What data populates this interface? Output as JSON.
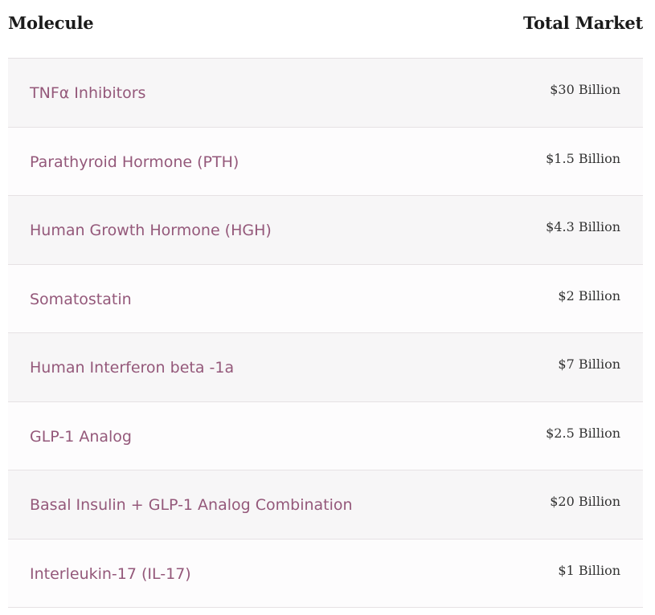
{
  "table": {
    "headers": {
      "molecule": "Molecule",
      "market": "Total Market"
    },
    "rows": [
      {
        "molecule": "TNFα Inhibitors",
        "market": "$30 Billion"
      },
      {
        "molecule": "Parathyroid Hormone (PTH)",
        "market": "$1.5 Billion"
      },
      {
        "molecule": "Human Growth Hormone (HGH)",
        "market": "$4.3 Billion"
      },
      {
        "molecule": "Somatostatin",
        "market": "$2 Billion"
      },
      {
        "molecule": "Human Interferon beta -1a",
        "market": "$7 Billion"
      },
      {
        "molecule": "GLP-1 Analog",
        "market": "$2.5 Billion"
      },
      {
        "molecule": "Basal Insulin + GLP-1 Analog Combination",
        "market": "$20 Billion"
      },
      {
        "molecule": "Interleukin-17 (IL-17)",
        "market": "$1 Billion"
      }
    ]
  },
  "colors": {
    "molecule_text": "#94587a",
    "market_text": "#333333",
    "header_text": "#1b1b1b",
    "row_odd_bg": "#f7f6f7",
    "row_even_bg": "#fdfcfd",
    "divider": "#e6e2e4"
  }
}
